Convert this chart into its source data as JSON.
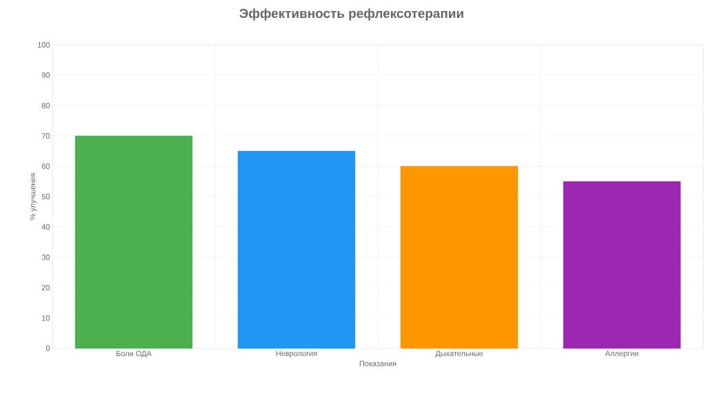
{
  "chart_data": {
    "type": "bar",
    "title": "Эффективность рефлексотерапии",
    "xlabel": "Показания",
    "ylabel": "% улучшения",
    "categories": [
      "Боли ОДА",
      "Неврология",
      "Дыхательные",
      "Аллергии"
    ],
    "values": [
      70,
      65,
      60,
      55
    ],
    "colors": [
      "#4caf50",
      "#2196f3",
      "#ff9800",
      "#9c27b0"
    ],
    "ylim": [
      0,
      100
    ],
    "yticks": [
      0,
      10,
      20,
      30,
      40,
      50,
      60,
      70,
      80,
      90,
      100
    ],
    "grid": true
  }
}
